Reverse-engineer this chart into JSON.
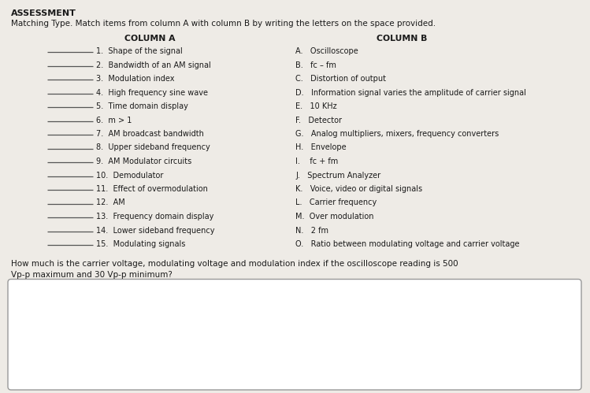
{
  "title": "ASSESSMENT",
  "subtitle": "Matching Type. Match items from column A with column B by writing the letters on the space provided.",
  "col_a_header": "COLUMN A",
  "col_b_header": "COLUMN B",
  "col_a_items": [
    "1.  Shape of the signal",
    "2.  Bandwidth of an AM signal",
    "3.  Modulation index",
    "4.  High frequency sine wave",
    "5.  Time domain display",
    "6.  m > 1",
    "7.  AM broadcast bandwidth",
    "8.  Upper sideband frequency",
    "9.  AM Modulator circuits",
    "10.  Demodulator",
    "11.  Effect of overmodulation",
    "12.  AM",
    "13.  Frequency domain display",
    "14.  Lower sideband frequency",
    "15.  Modulating signals"
  ],
  "col_b_items": [
    "A.   Oscilloscope",
    "B.   fc – fm",
    "C.   Distortion of output",
    "D.   Information signal varies the amplitude of carrier signal",
    "E.   10 KHz",
    "F.   Detector",
    "G.   Analog multipliers, mixers, frequency converters",
    "H.   Envelope",
    "I.    fc + fm",
    "J.   Spectrum Analyzer",
    "K.   Voice, video or digital signals",
    "L.   Carrier frequency",
    "M.  Over modulation",
    "N.   2 fm",
    "O.   Ratio between modulating voltage and carrier voltage"
  ],
  "question": "How much is the carrier voltage, modulating voltage and modulation index if the oscilloscope reading is 500\nVp-p maximum and 30 Vp-p minimum?",
  "bg_color": "#eeebe6",
  "text_color": "#1a1a1a",
  "box_color": "#ffffff",
  "box_border": "#999999",
  "title_fontsize": 8.0,
  "subtitle_fontsize": 7.5,
  "header_fontsize": 7.8,
  "item_fontsize": 7.0,
  "question_fontsize": 7.5
}
